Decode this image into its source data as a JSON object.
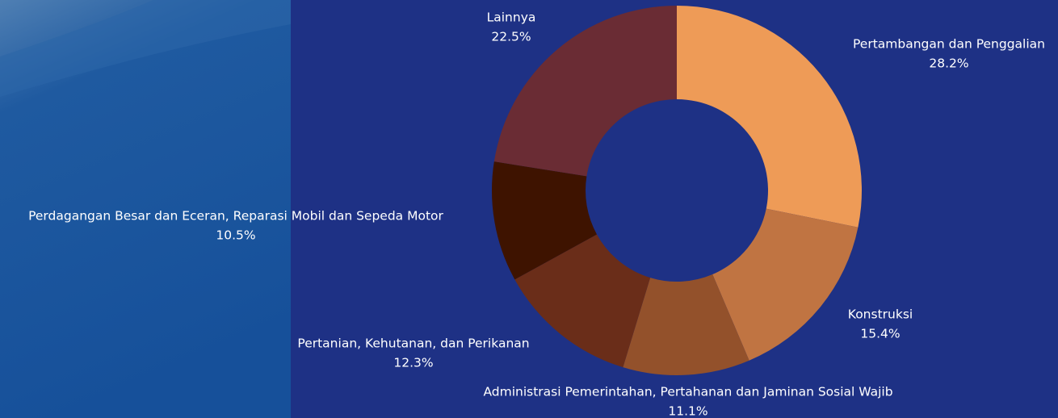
{
  "chart_data": {
    "type": "donut",
    "categories": [
      "Pertambangan dan Penggalian",
      "Konstruksi",
      "Administrasi Pemerintahan, Pertahanan dan Jaminan Sosial Wajib",
      "Pertanian, Kehutanan, dan Perikanan",
      "Perdagangan Besar dan Eceran, Reparasi Mobil dan Sepeda Motor",
      "Lainnya"
    ],
    "values": [
      28.2,
      15.4,
      11.1,
      12.3,
      10.5,
      22.5
    ],
    "value_labels": [
      "28.2%",
      "15.4%",
      "11.1%",
      "12.3%",
      "10.5%",
      "22.5%"
    ],
    "colors": [
      "#ee9b57",
      "#c07442",
      "#93512b",
      "#6a2d19",
      "#3e1300",
      "#6a2c34"
    ]
  }
}
